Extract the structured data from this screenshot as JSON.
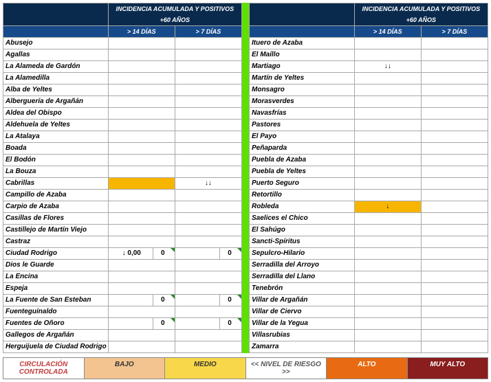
{
  "header": {
    "title": "INCIDENCIA ACUMULADA Y POSITIVOS +60 AÑOS",
    "col14": "> 14 DÍAS",
    "col7": "> 7 DÍAS"
  },
  "colors": {
    "header_dark": "#0a2a4d",
    "header_mid": "#174a8a",
    "separator": "#5ee000",
    "medio": "#f8b500",
    "bajo": "#f3c490",
    "alto": "#e86a12",
    "muyalto": "#8a1d1d",
    "corner": "#2a8a2a"
  },
  "left": [
    {
      "name": "Abusejo"
    },
    {
      "name": "Agallas"
    },
    {
      "name": "La Alameda de Gardón"
    },
    {
      "name": "La Alamedilla"
    },
    {
      "name": "Alba de Yeltes"
    },
    {
      "name": "Alberguería de Argañán"
    },
    {
      "name": "Aldea del Obispo"
    },
    {
      "name": "Aldehuela de Yeltes"
    },
    {
      "name": "La Atalaya"
    },
    {
      "name": "Boada"
    },
    {
      "name": "El Bodón"
    },
    {
      "name": "La Bouza"
    },
    {
      "name": "Cabrillas",
      "c14_bg": "medio",
      "c7_txt": "↓↓"
    },
    {
      "name": "Campillo de Azaba"
    },
    {
      "name": "Carpio de Azaba"
    },
    {
      "name": "Casillas de Flores"
    },
    {
      "name": "Castillejo de Martín Viejo"
    },
    {
      "name": "Castraz"
    },
    {
      "name": "Ciudad Rodrigo",
      "c14_split": {
        "a": "↓ 0,00",
        "b": "0"
      },
      "c7_split": {
        "a": "",
        "b": "0"
      },
      "mark": true
    },
    {
      "name": "Dios le Guarde"
    },
    {
      "name": "La Encina"
    },
    {
      "name": "Espeja"
    },
    {
      "name": "La Fuente de San Esteban",
      "c14_split": {
        "a": "",
        "b": "0"
      },
      "c7_split": {
        "a": "",
        "b": "0"
      },
      "mark": true
    },
    {
      "name": "Fuenteguinaldo"
    },
    {
      "name": "Fuentes de Oñoro",
      "c14_split": {
        "a": "",
        "b": "0"
      },
      "c7_split": {
        "a": "",
        "b": "0"
      },
      "mark": true
    },
    {
      "name": "Gallegos de Argañán"
    },
    {
      "name": "Herguijuela de Ciudad Rodrigo"
    }
  ],
  "right": [
    {
      "name": "Ituero de Azaba"
    },
    {
      "name": "El Maíllo"
    },
    {
      "name": "Martiago",
      "c14_txt": "↓↓"
    },
    {
      "name": "Martín de Yeltes"
    },
    {
      "name": "Monsagro"
    },
    {
      "name": "Morasverdes"
    },
    {
      "name": "Navasfrías"
    },
    {
      "name": "Pastores"
    },
    {
      "name": "El Payo"
    },
    {
      "name": "Peñaparda"
    },
    {
      "name": "Puebla de Azaba"
    },
    {
      "name": "Puebla de Yeltes"
    },
    {
      "name": "Puerto Seguro"
    },
    {
      "name": "Retortillo"
    },
    {
      "name": "Robleda",
      "c14_bg": "medio",
      "c14_txt": "↓"
    },
    {
      "name": "Saelices el Chico"
    },
    {
      "name": "El Sahúgo"
    },
    {
      "name": "Sancti-Spíritus"
    },
    {
      "name": "Sepulcro-Hilario"
    },
    {
      "name": "Serradilla del Arroyo"
    },
    {
      "name": "Serradilla del Llano"
    },
    {
      "name": "Tenebrón"
    },
    {
      "name": "Villar de Argañán"
    },
    {
      "name": "Villar de Ciervo"
    },
    {
      "name": "Villar de la Yegua"
    },
    {
      "name": "Villasrubias"
    },
    {
      "name": "Zamarra"
    }
  ],
  "legend": {
    "cc": "CIRCULACIÓN CONTROLADA",
    "bajo": "BAJO",
    "medio": "MEDIO",
    "nivel": "<< NIVEL DE RIESGO >>",
    "alto": "ALTO",
    "muy": "MUY ALTO"
  }
}
